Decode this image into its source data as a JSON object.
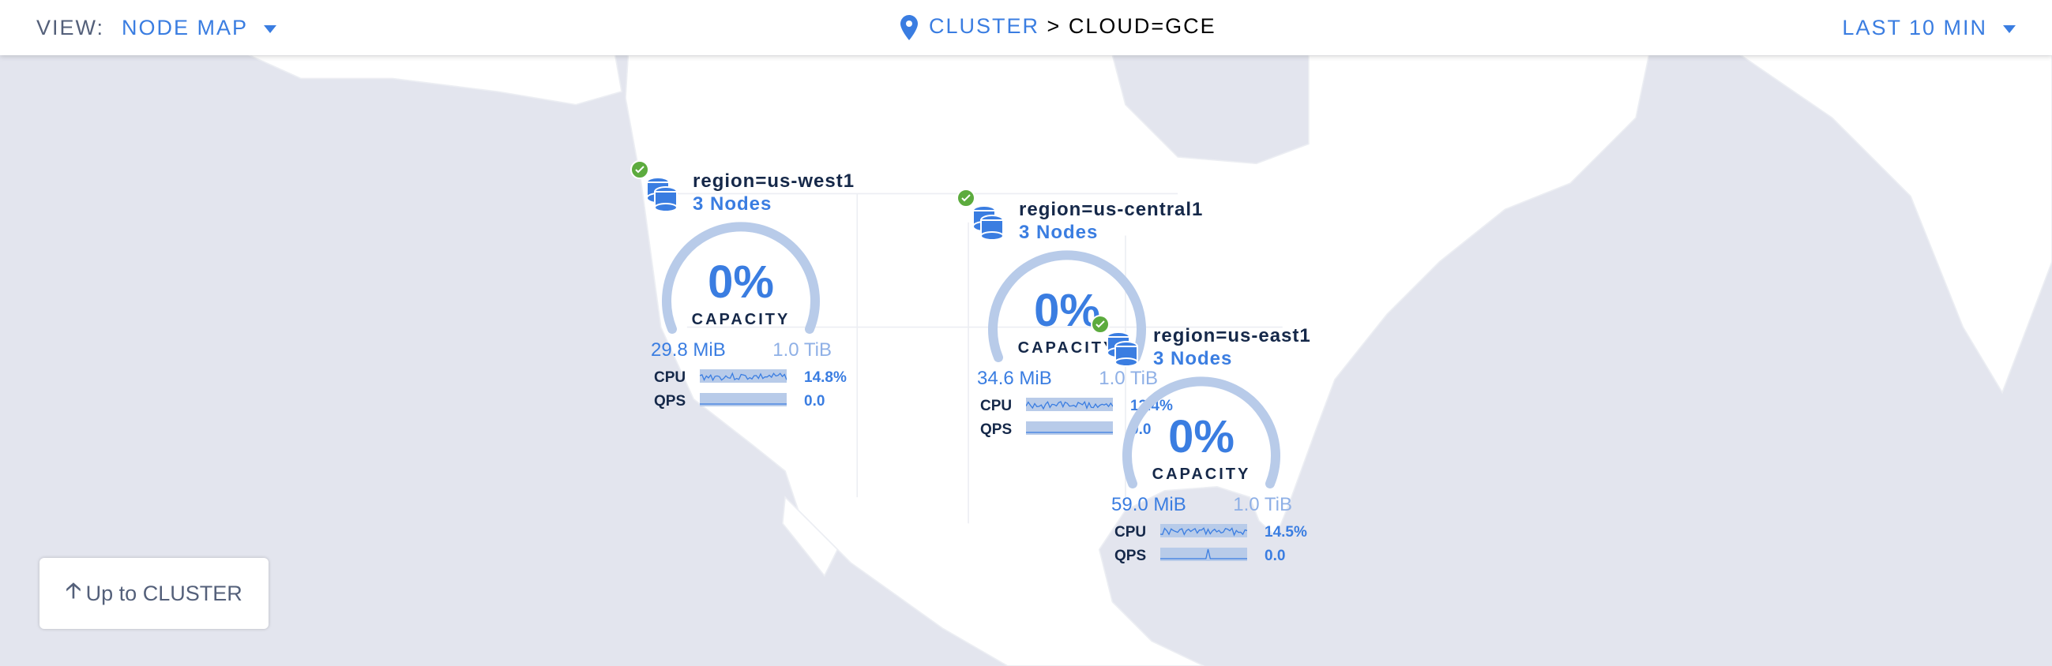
{
  "header": {
    "view_label": "VIEW:",
    "view_value": "NODE MAP",
    "breadcrumb_root": "CLUSTER",
    "breadcrumb_sep": ">",
    "breadcrumb_current": "CLOUD=GCE",
    "time_range": "LAST 10 MIN"
  },
  "colors": {
    "accent": "#3a7de1",
    "healthy": "#5cab3e",
    "gauge_track": "#b8cbe9",
    "land": "#ffffff",
    "water": "#e3e5ee"
  },
  "regions": [
    {
      "name": "region=us-west1",
      "nodes": "3 Nodes",
      "status": "healthy",
      "capacity_pct": "0%",
      "capacity_label": "CAPACITY",
      "used": "29.8 MiB",
      "total": "1.0 TiB",
      "cpu_label": "CPU",
      "cpu": "14.8%",
      "qps_label": "QPS",
      "qps": "0.0"
    },
    {
      "name": "region=us-central1",
      "nodes": "3 Nodes",
      "status": "healthy",
      "capacity_pct": "0%",
      "capacity_label": "CAPACITY",
      "used": "34.6 MiB",
      "total": "1.0 TiB",
      "cpu_label": "CPU",
      "cpu": "13.4%",
      "qps_label": "QPS",
      "qps": "0.0"
    },
    {
      "name": "region=us-east1",
      "nodes": "3 Nodes",
      "status": "healthy",
      "capacity_pct": "0%",
      "capacity_label": "CAPACITY",
      "used": "59.0 MiB",
      "total": "1.0 TiB",
      "cpu_label": "CPU",
      "cpu": "14.5%",
      "qps_label": "QPS",
      "qps": "0.0"
    }
  ],
  "up_button": {
    "label": "Up to CLUSTER",
    "icon": "arrow-up-icon"
  }
}
